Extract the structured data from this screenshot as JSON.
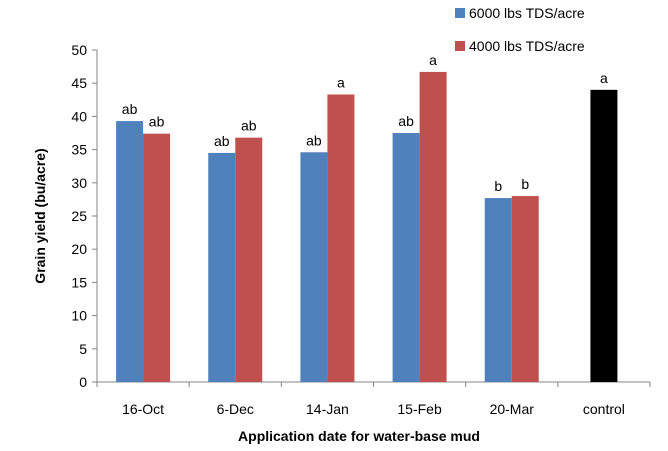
{
  "chart_data": {
    "type": "bar",
    "title": "",
    "xlabel": "Application date for water-base mud",
    "ylabel": "Grain yield (bu/acre)",
    "ylim": [
      0,
      50
    ],
    "yticks": [
      0,
      5,
      10,
      15,
      20,
      25,
      30,
      35,
      40,
      45,
      50
    ],
    "grid": false,
    "legend_position": "top-right",
    "categories": [
      "16-Oct",
      "6-Dec",
      "14-Jan",
      "15-Feb",
      "20-Mar",
      "control"
    ],
    "series": [
      {
        "name": "6000 lbs TDS/acre",
        "color": "#4f81bd",
        "values": [
          39.3,
          34.5,
          34.6,
          37.5,
          27.7,
          null
        ],
        "labels": [
          "ab",
          "ab",
          "ab",
          "ab",
          "b",
          null
        ]
      },
      {
        "name": "4000 lbs TDS/acre",
        "color": "#c0504d",
        "values": [
          37.4,
          36.8,
          43.3,
          46.7,
          28.0,
          null
        ],
        "labels": [
          "ab",
          "ab",
          "a",
          "a",
          "b",
          null
        ]
      },
      {
        "name": "",
        "color": "#000000",
        "values": [
          null,
          null,
          null,
          null,
          null,
          44.0
        ],
        "labels": [
          null,
          null,
          null,
          null,
          null,
          "a"
        ]
      }
    ]
  }
}
